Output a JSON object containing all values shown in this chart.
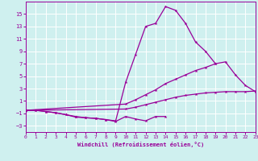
{
  "xlabel": "Windchill (Refroidissement éolien,°C)",
  "bg_color": "#cff0ef",
  "line_color": "#990099",
  "grid_color": "#ffffff",
  "xlim": [
    0,
    23
  ],
  "ylim": [
    -4,
    17
  ],
  "xticks": [
    0,
    1,
    2,
    3,
    4,
    5,
    6,
    7,
    8,
    9,
    10,
    11,
    12,
    13,
    14,
    15,
    16,
    17,
    18,
    19,
    20,
    21,
    22,
    23
  ],
  "yticks": [
    -3,
    -1,
    1,
    3,
    5,
    7,
    9,
    11,
    13,
    15
  ],
  "l1x": [
    0,
    1,
    2,
    3,
    4,
    5,
    6,
    7,
    8,
    9,
    10,
    11,
    12,
    13,
    14,
    15,
    16,
    17,
    18,
    19
  ],
  "l1y": [
    -0.5,
    -0.5,
    -0.7,
    -0.9,
    -1.2,
    -1.5,
    -1.7,
    -1.8,
    -2.0,
    -2.2,
    4.0,
    8.5,
    13.0,
    13.5,
    16.2,
    15.6,
    13.5,
    10.5,
    9.0,
    7.0
  ],
  "l2x": [
    0,
    1,
    2,
    3,
    4,
    5,
    6,
    7,
    8,
    9,
    10,
    11,
    12,
    13,
    14
  ],
  "l2y": [
    -0.5,
    -0.5,
    -0.7,
    -0.9,
    -1.2,
    -1.6,
    -1.7,
    -1.8,
    -2.0,
    -2.3,
    -1.5,
    -1.9,
    -2.2,
    -1.5,
    -1.5
  ],
  "l3x": [
    0,
    10,
    11,
    12,
    13,
    14,
    15,
    16,
    17,
    18,
    19,
    20,
    21,
    22,
    23
  ],
  "l3y": [
    -0.5,
    0.5,
    1.2,
    2.0,
    2.8,
    3.8,
    4.5,
    5.2,
    5.9,
    6.4,
    7.0,
    7.3,
    5.2,
    3.5,
    2.5
  ],
  "l4x": [
    0,
    10,
    11,
    12,
    13,
    14,
    15,
    16,
    17,
    18,
    19,
    20,
    21,
    22,
    23
  ],
  "l4y": [
    -0.5,
    -0.3,
    0.0,
    0.4,
    0.8,
    1.2,
    1.6,
    1.9,
    2.1,
    2.3,
    2.4,
    2.5,
    2.5,
    2.5,
    2.6
  ]
}
